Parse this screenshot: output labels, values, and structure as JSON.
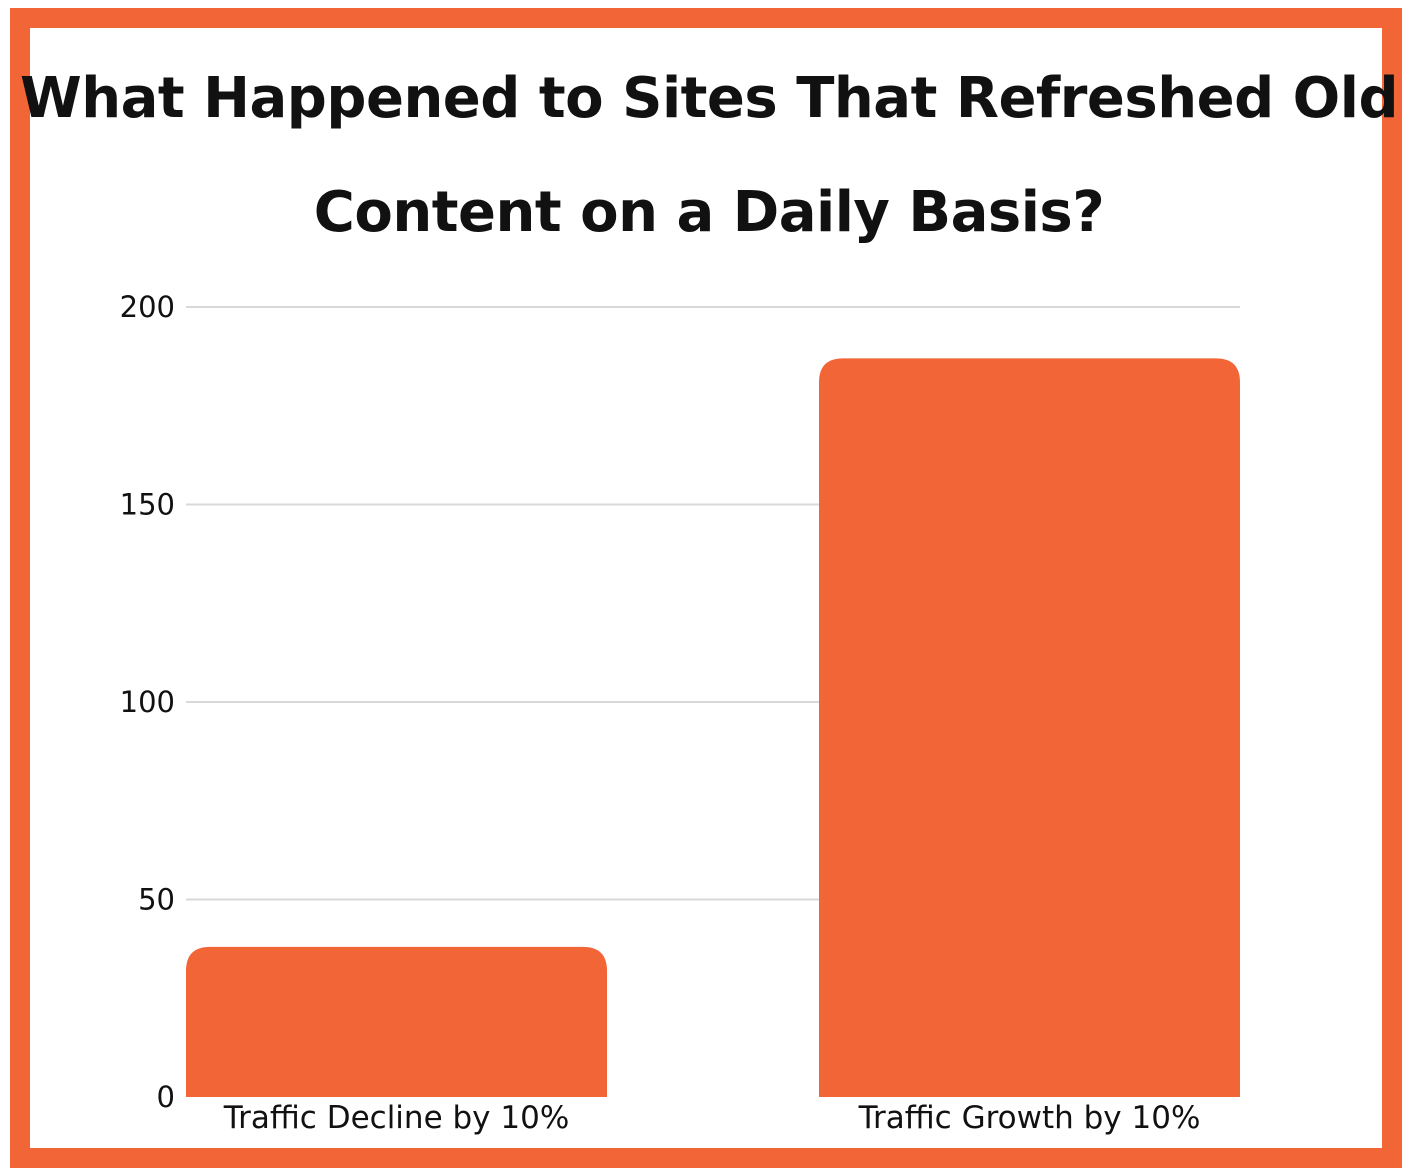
{
  "chart_data": {
    "type": "bar",
    "title": "What Happened to Sites That Refreshed Old Content on a Daily Basis?",
    "categories": [
      "Traffic Decline by 10%",
      "Traffic Growth by 10%"
    ],
    "values": [
      38,
      187
    ],
    "ylim": [
      0,
      200
    ],
    "yticks": [
      0,
      50,
      100,
      150,
      200
    ],
    "grid": true,
    "colors": {
      "bar": "#f26536",
      "border": "#f26536",
      "grid": "#d9d9d9"
    }
  }
}
